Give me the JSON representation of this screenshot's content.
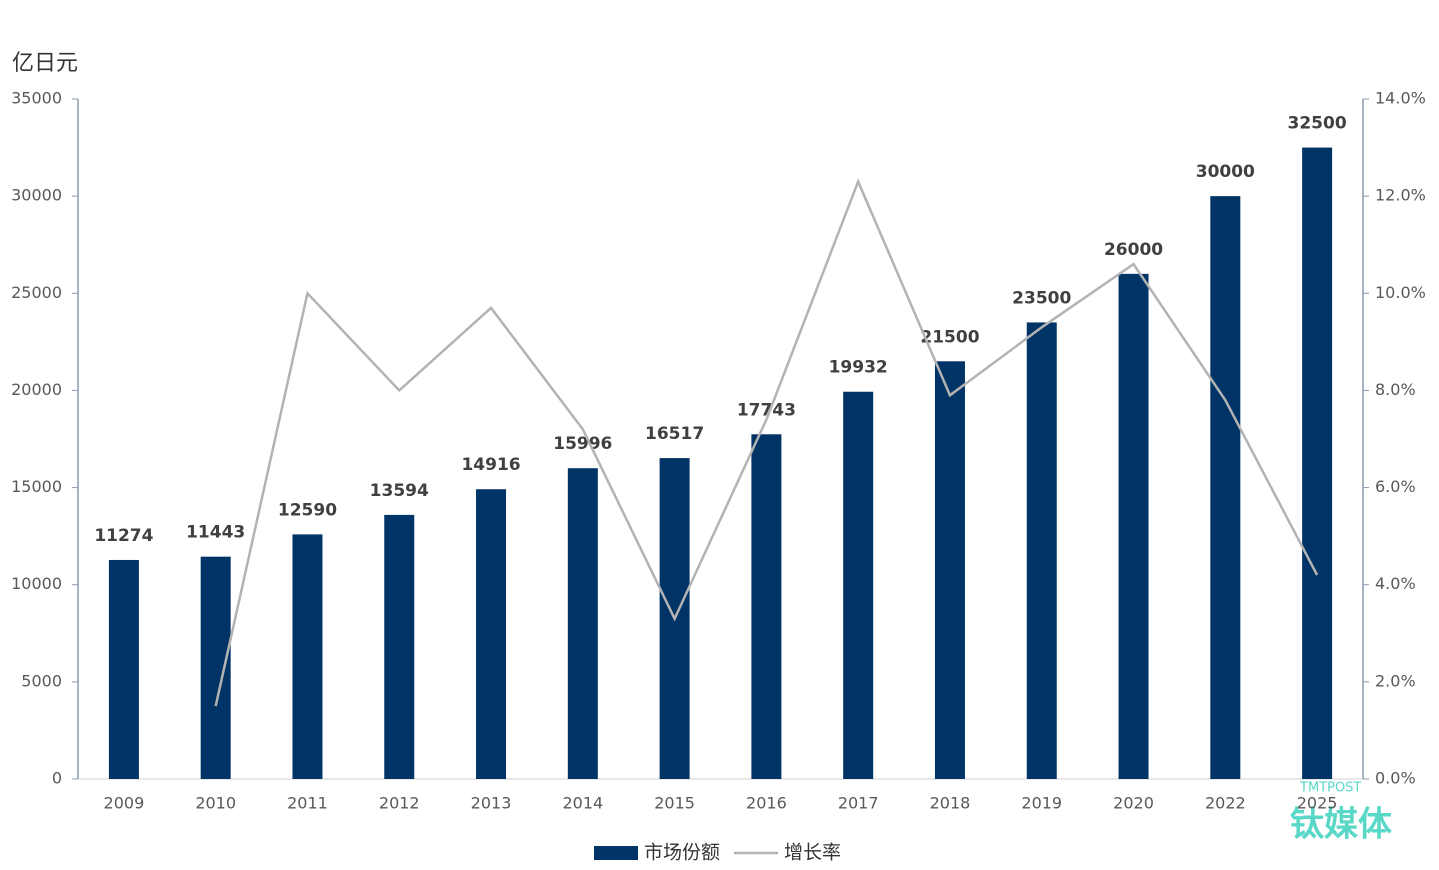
{
  "chart_data": {
    "type": "bar-line",
    "y_unit_label": "亿日元",
    "categories": [
      "2009",
      "2010",
      "2011",
      "2012",
      "2013",
      "2014",
      "2015",
      "2016",
      "2017",
      "2018",
      "2019",
      "2020",
      "2022",
      "2025"
    ],
    "series": [
      {
        "name": "市场份额",
        "type": "bar",
        "color": "#003366",
        "values": [
          11274,
          11443,
          12590,
          13594,
          14916,
          15996,
          16517,
          17743,
          19932,
          21500,
          23500,
          26000,
          30000,
          32500
        ]
      },
      {
        "name": "增长率",
        "type": "line",
        "color": "#b3b3b3",
        "axis": "y2",
        "values": [
          null,
          1.5,
          10.0,
          8.0,
          9.7,
          7.2,
          3.3,
          7.4,
          12.3,
          7.9,
          9.3,
          10.6,
          7.8,
          4.2
        ]
      }
    ],
    "ylim": [
      0,
      35000
    ],
    "yticks": [
      0,
      5000,
      10000,
      15000,
      20000,
      25000,
      30000,
      35000
    ],
    "y2lim": [
      0,
      14
    ],
    "y2ticks": [
      {
        "value": 0,
        "label": "0.0%"
      },
      {
        "value": 2,
        "label": "2.0%"
      },
      {
        "value": 4,
        "label": "4.0%"
      },
      {
        "value": 6,
        "label": "6.0%"
      },
      {
        "value": 8,
        "label": "8.0%"
      },
      {
        "value": 10,
        "label": "10.0%"
      },
      {
        "value": 12,
        "label": "12.0%"
      },
      {
        "value": 14,
        "label": "14.0%"
      }
    ],
    "legend": "bottom",
    "watermark": "钛媒体",
    "watermark_sub": "TMTPOST"
  }
}
